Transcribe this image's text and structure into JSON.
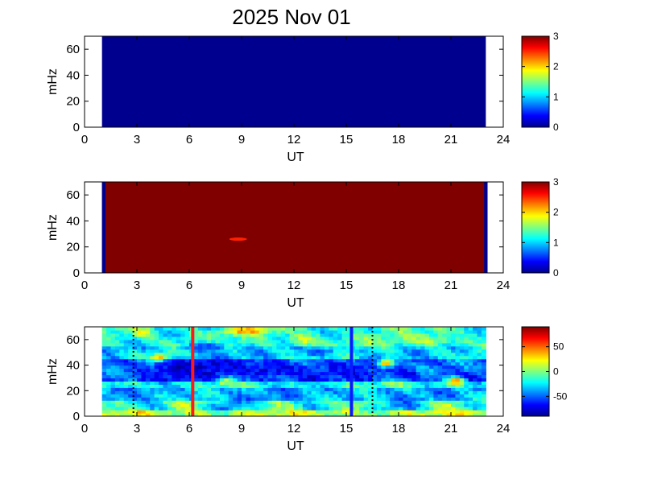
{
  "title": "2025 Nov 01",
  "chart_data": [
    {
      "type": "heatmap",
      "panel": "top",
      "xlabel": "UT",
      "ylabel": "mHz",
      "xlim": [
        0,
        24
      ],
      "ylim": [
        0,
        70
      ],
      "xticks": [
        "0",
        "3",
        "6",
        "9",
        "12",
        "15",
        "18",
        "21",
        "24"
      ],
      "yticks": [
        "0",
        "20",
        "40",
        "60"
      ],
      "data_extent_ut": [
        1,
        23
      ],
      "fill_value": 0,
      "fill_color": "#00008f",
      "colorbar": {
        "range": [
          0,
          3
        ],
        "ticks": [
          "0",
          "1",
          "2",
          "3"
        ]
      }
    },
    {
      "type": "heatmap",
      "panel": "middle",
      "xlabel": "UT",
      "ylabel": "mHz",
      "xlim": [
        0,
        24
      ],
      "ylim": [
        0,
        70
      ],
      "xticks": [
        "0",
        "3",
        "6",
        "9",
        "12",
        "15",
        "18",
        "21",
        "24"
      ],
      "yticks": [
        "0",
        "20",
        "40",
        "60"
      ],
      "data_extent_ut": [
        1,
        23
      ],
      "fill_value": 3,
      "fill_color": "#800000",
      "edge_strips_value": 0,
      "edge_strips_ut": [
        [
          1.0,
          1.2
        ],
        [
          22.9,
          23.1
        ]
      ],
      "feature": {
        "ut": 8.8,
        "mhz": 26,
        "value": 2.6
      },
      "colorbar": {
        "range": [
          0,
          3
        ],
        "ticks": [
          "0",
          "1",
          "2",
          "3"
        ]
      }
    },
    {
      "type": "heatmap",
      "panel": "bottom",
      "xlabel": "UT",
      "ylabel": "mHz",
      "xlim": [
        0,
        24
      ],
      "ylim": [
        0,
        70
      ],
      "xticks": [
        "0",
        "3",
        "6",
        "9",
        "12",
        "15",
        "18",
        "21",
        "24"
      ],
      "yticks": [
        "0",
        "20",
        "40",
        "60"
      ],
      "data_extent_ut": [
        1,
        23
      ],
      "colorbar": {
        "range": [
          -90,
          90
        ],
        "ticks": [
          "50",
          "0",
          "-50"
        ]
      },
      "vertical_markers": [
        {
          "ut": 2.8,
          "style": "dotted",
          "color": "#000000"
        },
        {
          "ut": 6.2,
          "style": "solid",
          "color": "#ff1a1a"
        },
        {
          "ut": 15.3,
          "style": "solid",
          "color": "#0a1aff"
        },
        {
          "ut": 16.5,
          "style": "dotted",
          "color": "#000000"
        }
      ]
    }
  ]
}
